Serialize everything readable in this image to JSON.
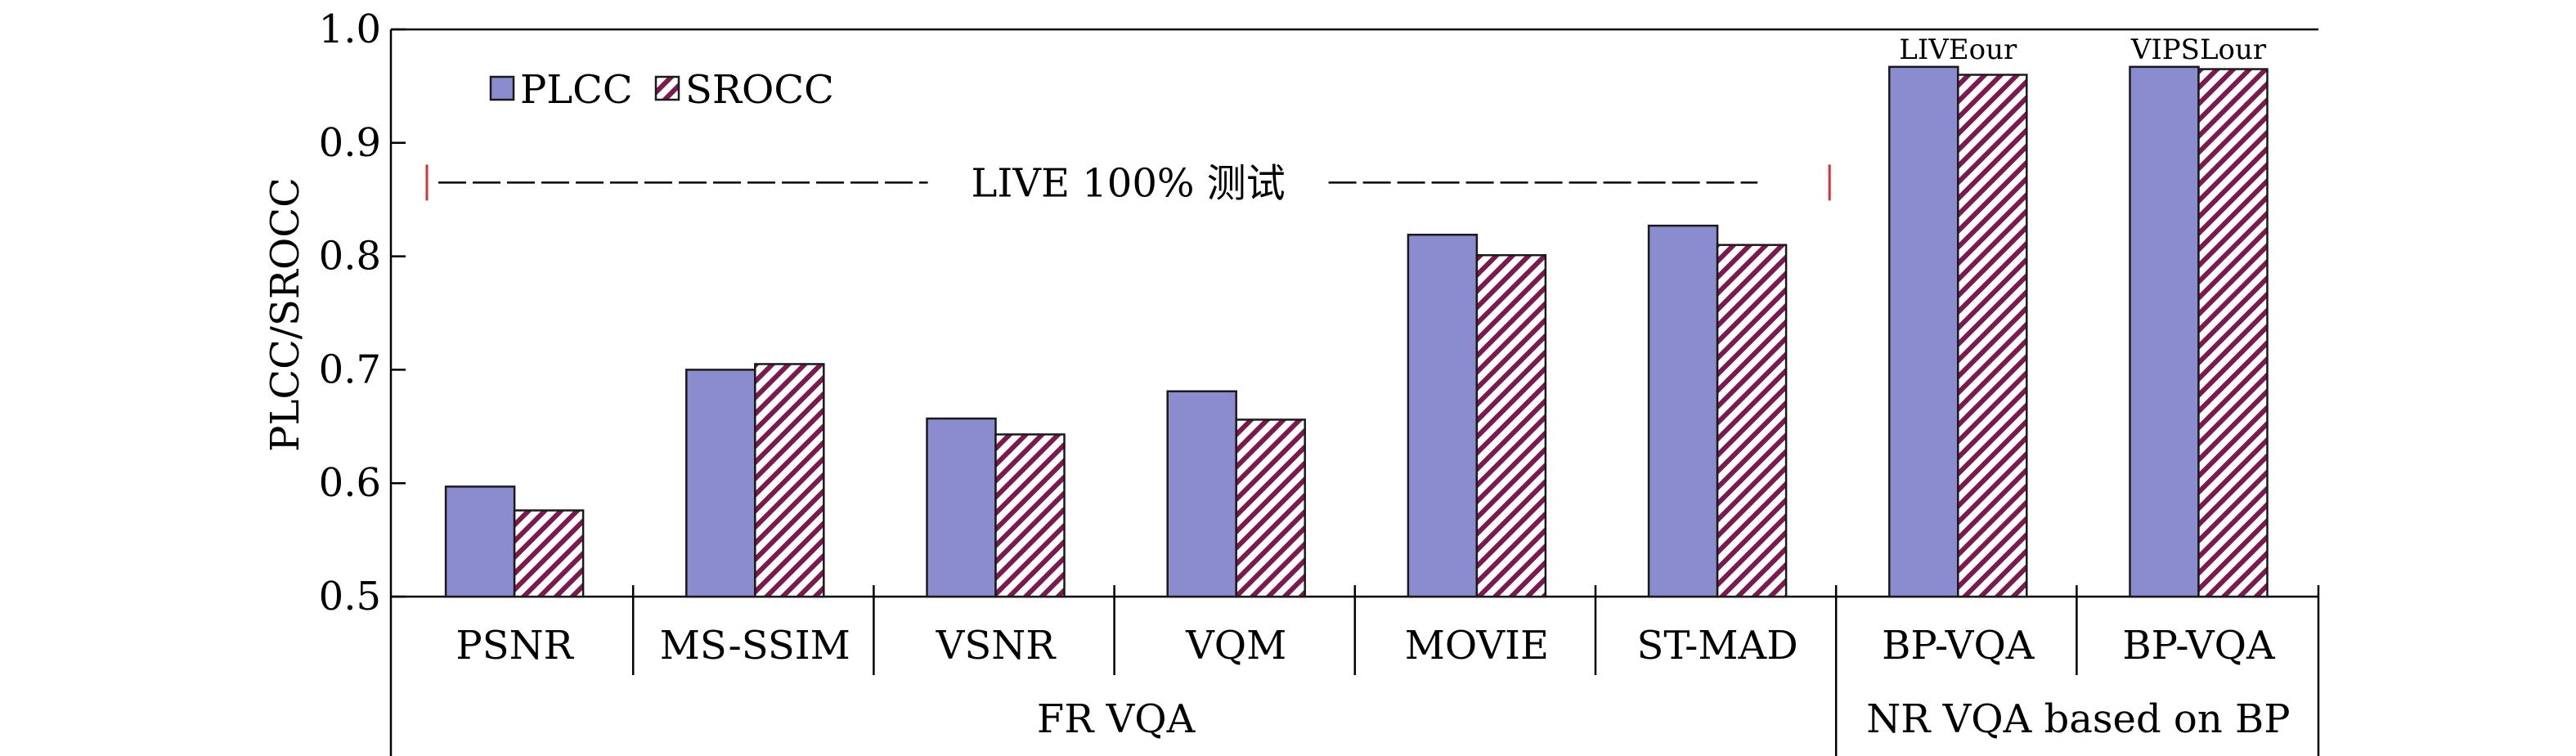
{
  "chart_data": {
    "type": "bar",
    "ylabel": "PLCC/SROCC",
    "ylim": [
      0.5,
      1.0
    ],
    "yticks": [
      "0.5",
      "0.6",
      "0.7",
      "0.8",
      "0.9",
      "1.0"
    ],
    "categories": [
      "PSNR",
      "MS-SSIM",
      "VSNR",
      "VQM",
      "MOVIE",
      "ST-MAD",
      "BP-VQA",
      "BP-VQA"
    ],
    "series": [
      {
        "name": "PLCC",
        "values": [
          0.597,
          0.7,
          0.657,
          0.681,
          0.819,
          0.827,
          0.967,
          0.967
        ],
        "color": "#8b8bcf"
      },
      {
        "name": "SROCC",
        "values": [
          0.576,
          0.705,
          0.643,
          0.656,
          0.801,
          0.81,
          0.96,
          0.965
        ],
        "pattern": "hatch",
        "color": "#7a1a4e"
      }
    ],
    "groups": [
      {
        "label": "FR VQA",
        "from": 0,
        "to": 5
      },
      {
        "label": "NR VQA based on BP",
        "from": 6,
        "to": 7
      }
    ],
    "bar_annotations": [
      "LIVEour",
      "VIPSLour"
    ],
    "bar_annotation_categories": [
      6,
      7
    ],
    "span_annotation": {
      "label": "LIVE 100% 测试",
      "from": 0,
      "to": 5,
      "y": 0.865
    },
    "legend": {
      "placement": "top-left",
      "entries": [
        "PLCC",
        "SROCC"
      ]
    }
  }
}
